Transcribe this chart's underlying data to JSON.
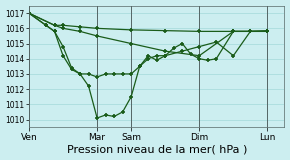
{
  "bg_color": "#cceef0",
  "grid_color": "#aadddd",
  "line_color": "#1a5c1a",
  "marker_color": "#1a5c1a",
  "xlabel": "Pression niveau de la mer( hPa )",
  "xlabel_fontsize": 8,
  "ylim": [
    1009.5,
    1017.5
  ],
  "yticks": [
    1010,
    1011,
    1012,
    1013,
    1014,
    1015,
    1016,
    1017
  ],
  "xtick_labels": [
    "Ven",
    "Mar",
    "Sam",
    "Dim",
    "Lun"
  ],
  "xtick_positions": [
    0,
    48,
    72,
    120,
    168
  ],
  "xlim": [
    0,
    180
  ],
  "series1_x": [
    0,
    18,
    24,
    36,
    48,
    72,
    96,
    120,
    144,
    168
  ],
  "series1_y": [
    1017.0,
    1016.2,
    1016.2,
    1016.1,
    1016.0,
    1015.9,
    1015.85,
    1015.8,
    1015.8,
    1015.8
  ],
  "series2_x": [
    0,
    18,
    24,
    36,
    48,
    72,
    96,
    120,
    144,
    168
  ],
  "series2_y": [
    1017.0,
    1016.2,
    1016.0,
    1015.8,
    1015.5,
    1015.0,
    1014.5,
    1014.2,
    1015.8,
    1015.8
  ],
  "series3_x": [
    0,
    12,
    18,
    24,
    30,
    36,
    42,
    48,
    54,
    60,
    66,
    72,
    78,
    84,
    90,
    96,
    108,
    120,
    132,
    144,
    156,
    168
  ],
  "series3_y": [
    1017.0,
    1016.2,
    1015.8,
    1014.2,
    1013.3,
    1013.0,
    1013.0,
    1012.8,
    1013.0,
    1013.0,
    1013.0,
    1013.0,
    1013.5,
    1014.0,
    1014.2,
    1014.2,
    1014.5,
    1014.8,
    1015.1,
    1014.2,
    1015.8,
    1015.85
  ],
  "series4_x": [
    0,
    12,
    18,
    24,
    30,
    36,
    42,
    48,
    54,
    60,
    66,
    72,
    78,
    84,
    90,
    96,
    102,
    108,
    114,
    120,
    126,
    132,
    144,
    156,
    168
  ],
  "series4_y": [
    1017.0,
    1016.2,
    1015.8,
    1014.8,
    1013.4,
    1013.0,
    1012.2,
    1010.1,
    1010.3,
    1010.2,
    1010.5,
    1011.5,
    1013.5,
    1014.2,
    1013.9,
    1014.2,
    1014.7,
    1015.0,
    1014.3,
    1014.0,
    1013.9,
    1014.0,
    1015.8,
    1015.8,
    1015.8
  ]
}
